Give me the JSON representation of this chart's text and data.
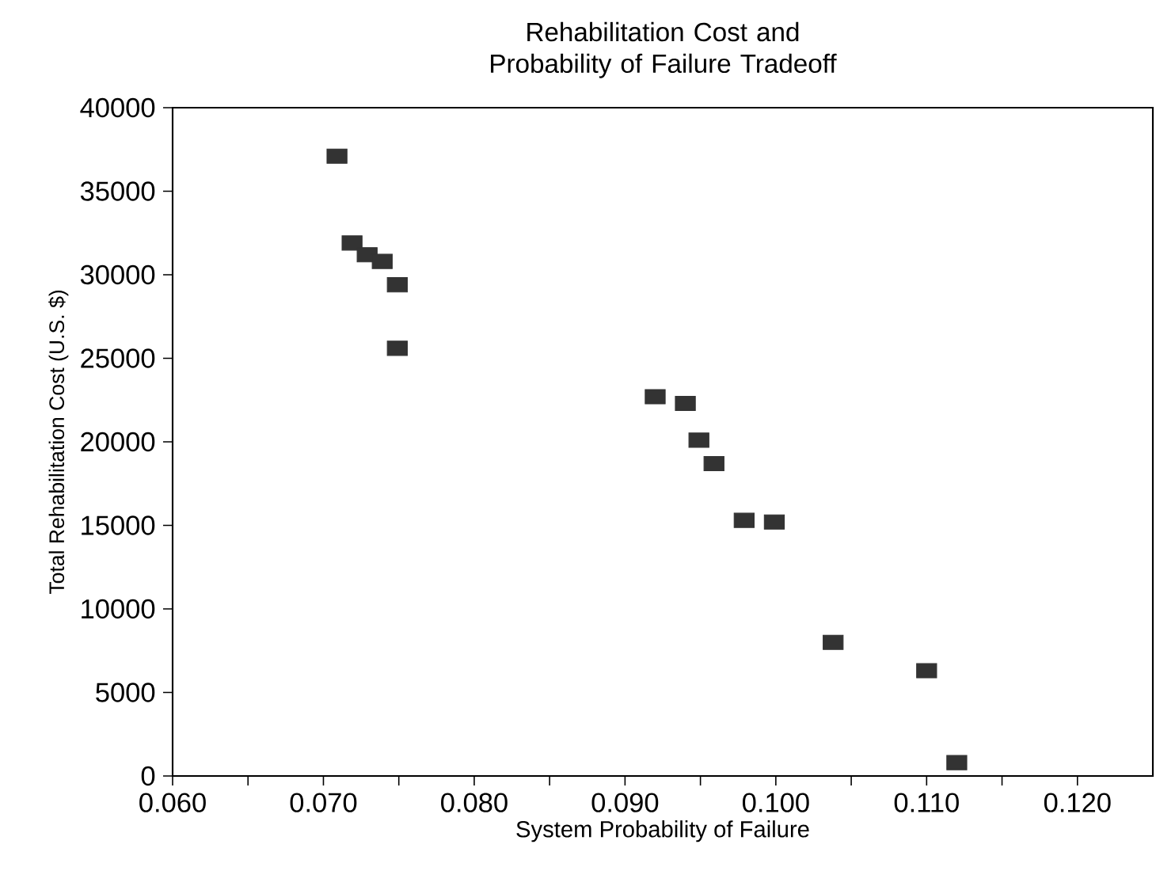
{
  "chart_data": {
    "type": "scatter",
    "title": "Rehabilitation Cost and Probability of Failure Tradeoff",
    "xlabel": "System Probability of Failure",
    "ylabel": "Total Rehabilitation Cost (U.S. $)",
    "x": [
      0.0709,
      0.0719,
      0.0729,
      0.0739,
      0.0749,
      0.0749,
      0.092,
      0.094,
      0.0949,
      0.0959,
      0.0979,
      0.0999,
      0.1038,
      0.11,
      0.112
    ],
    "values": [
      37100,
      31900,
      31200,
      30800,
      29400,
      25600,
      22700,
      22300,
      20100,
      18700,
      15300,
      15200,
      8000,
      6300,
      800
    ],
    "color": "#333333",
    "marker": "square",
    "xlim": [
      0.06,
      0.125
    ],
    "ylim": [
      0,
      40000
    ],
    "xticks": [
      {
        "value": 0.06,
        "label": "0.060"
      },
      {
        "value": 0.065,
        "label": null
      },
      {
        "value": 0.07,
        "label": "0.070"
      },
      {
        "value": 0.075,
        "label": null
      },
      {
        "value": 0.08,
        "label": "0.080"
      },
      {
        "value": 0.085,
        "label": null
      },
      {
        "value": 0.09,
        "label": "0.090"
      },
      {
        "value": 0.095,
        "label": null
      },
      {
        "value": 0.1,
        "label": "0.100"
      },
      {
        "value": 0.105,
        "label": null
      },
      {
        "value": 0.11,
        "label": "0.110"
      },
      {
        "value": 0.115,
        "label": null
      },
      {
        "value": 0.12,
        "label": "0.120"
      }
    ],
    "yticks": [
      0,
      5000,
      10000,
      15000,
      20000,
      25000,
      30000,
      35000,
      40000
    ]
  }
}
